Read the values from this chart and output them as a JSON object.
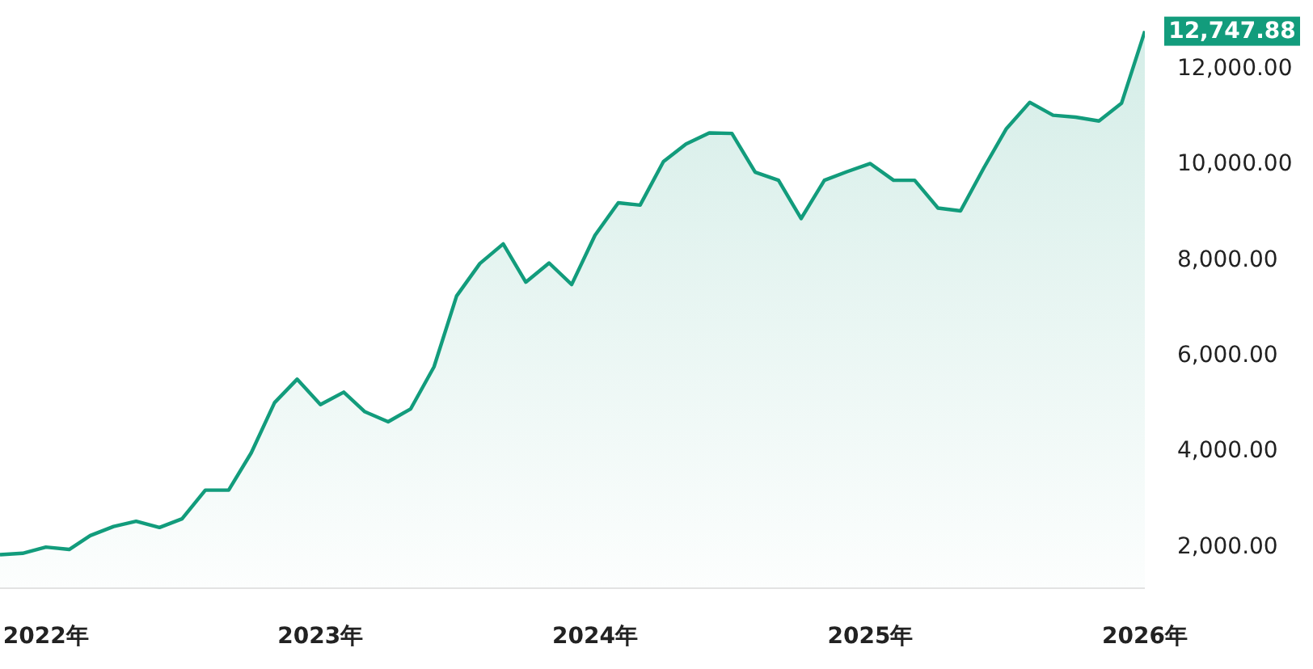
{
  "chart_data": {
    "type": "area",
    "x": [
      "2021-11",
      "2021-12",
      "2022-01",
      "2022-02",
      "2022-03",
      "2022-04",
      "2022-05",
      "2022-06",
      "2022-07",
      "2022-08",
      "2022-09",
      "2022-10",
      "2022-11",
      "2022-12",
      "2023-01",
      "2023-02",
      "2023-03",
      "2023-04",
      "2023-05",
      "2023-06",
      "2023-07",
      "2023-08",
      "2023-09",
      "2023-10",
      "2023-11",
      "2023-12",
      "2024-01",
      "2024-02",
      "2024-03",
      "2024-04",
      "2024-05",
      "2024-06",
      "2024-07",
      "2024-08",
      "2024-09",
      "2024-10",
      "2024-11",
      "2024-12",
      "2025-01",
      "2025-02",
      "2025-03",
      "2025-04",
      "2025-05",
      "2025-06",
      "2025-07",
      "2025-08",
      "2025-09",
      "2025-10",
      "2025-11",
      "2025-12",
      "2026-01"
    ],
    "series": [
      {
        "color": "#129c7c",
        "values": [
          1800,
          1830,
          1960,
          1910,
          2200,
          2390,
          2500,
          2370,
          2550,
          3150,
          3150,
          3930,
          4980,
          5470,
          4940,
          5200,
          4790,
          4580,
          4850,
          5730,
          7210,
          7890,
          8300,
          7500,
          7900,
          7450,
          8480,
          9160,
          9110,
          10020,
          10390,
          10620,
          10610,
          9800,
          9630,
          8830,
          9630,
          9810,
          9980,
          9630,
          9630,
          9050,
          8990,
          9890,
          10710,
          11260,
          10990,
          10950,
          10870,
          11240,
          12747.88
        ],
        "value_labels": [
          null,
          null,
          null,
          null,
          null,
          null,
          null,
          null,
          null,
          null,
          null,
          null,
          null,
          null,
          null,
          null,
          null,
          null,
          null,
          null,
          null,
          null,
          null,
          null,
          null,
          null,
          null,
          null,
          null,
          null,
          null,
          null,
          null,
          null,
          null,
          null,
          null,
          null,
          null,
          null,
          null,
          null,
          null,
          null,
          null,
          null,
          null,
          null,
          null,
          null,
          "12,747.88"
        ]
      }
    ],
    "xlim": [
      "2021-11",
      "2026-01"
    ],
    "xticks": [
      {
        "value": "2022-01",
        "label": "2022年"
      },
      {
        "value": "2023-01",
        "label": "2023年"
      },
      {
        "value": "2024-01",
        "label": "2024年"
      },
      {
        "value": "2025-01",
        "label": "2025年"
      },
      {
        "value": "2026-01",
        "label": "2026年"
      }
    ],
    "ylim": [
      1100,
      13400
    ],
    "yticks": [
      {
        "value": 2000,
        "label": "2,000.00"
      },
      {
        "value": 4000,
        "label": "4,000.00"
      },
      {
        "value": 6000,
        "label": "6,000.00"
      },
      {
        "value": 8000,
        "label": "8,000.00"
      },
      {
        "value": 10000,
        "label": "10,000.00"
      },
      {
        "value": 12000,
        "label": "12,000.00"
      }
    ],
    "grid": false,
    "legend": false
  }
}
